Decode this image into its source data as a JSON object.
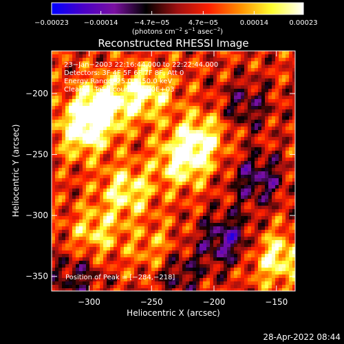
{
  "chart_data": {
    "type": "heatmap",
    "title": "Reconstructed RHESSI Image",
    "xlabel": "Heliocentric X (arcsec)",
    "ylabel": "Heliocentric Y (arcsec)",
    "xlim": [
      -330,
      -135
    ],
    "ylim": [
      -362,
      -165
    ],
    "x_ticks": [
      -300,
      -250,
      -200,
      -150
    ],
    "x_tick_labels": [
      "−300",
      "−250",
      "−200",
      "−150"
    ],
    "y_ticks": [
      -200,
      -250,
      -300,
      -350
    ],
    "y_tick_labels": [
      "−200",
      "−250",
      "−300",
      "−350"
    ],
    "colorbar": {
      "range": [
        -0.00023,
        0.00023
      ],
      "ticks": [
        -0.00023,
        -0.00014,
        -4.7e-05,
        4.7e-05,
        0.00014,
        0.00023
      ],
      "tick_labels": [
        "−0.00023",
        "−0.00014",
        "−4.7e−05",
        "4.7e−05",
        "0.00014",
        "0.00023"
      ],
      "label_prefix": "(photons cm",
      "label_exp1": "−2",
      "label_mid": " s",
      "label_exp2": "−1",
      "label_mid2": " asec",
      "label_exp3": "−2",
      "label_suffix": ")",
      "colors": [
        "#0000ff",
        "#4a00c8",
        "#7a10a0",
        "#000000",
        "#a01010",
        "#ff2000",
        "#ff9000",
        "#ffff30",
        "#ffffff"
      ]
    },
    "annotations": [
      "23−Jan−2003 22:16:44.000 to 22:22:44.000",
      "Detectors: 3F 4F 5F 6F 7F 8F, Att 0",
      "Energy Range: 25.0 − 50.0 keV",
      "Clean     Total counts: 4.90E+03",
      "Position of Peak = [−284,−218]"
    ],
    "peak": [
      -284,
      -218
    ],
    "bright_regions": [
      {
        "x": -290,
        "y": -210,
        "value": 0.0002
      },
      {
        "x": -305,
        "y": -230,
        "value": 0.00018
      },
      {
        "x": -255,
        "y": -200,
        "value": 0.00016
      },
      {
        "x": -225,
        "y": -255,
        "value": 0.00017
      },
      {
        "x": -270,
        "y": -280,
        "value": 0.00015
      },
      {
        "x": -210,
        "y": -235,
        "value": 0.00014
      },
      {
        "x": -150,
        "y": -335,
        "value": 0.00016
      },
      {
        "x": -295,
        "y": -315,
        "value": 0.00012
      },
      {
        "x": -245,
        "y": -330,
        "value": 0.0001
      }
    ],
    "dark_regions": [
      {
        "x": -190,
        "y": -320,
        "value": -0.00016
      },
      {
        "x": -165,
        "y": -270,
        "value": -0.00014
      },
      {
        "x": -230,
        "y": -345,
        "value": -0.00012
      },
      {
        "x": -175,
        "y": -210,
        "value": -0.0001
      },
      {
        "x": -310,
        "y": -350,
        "value": -0.0001
      }
    ]
  },
  "footer": {
    "timestamp": "28-Apr-2022 08:44"
  }
}
